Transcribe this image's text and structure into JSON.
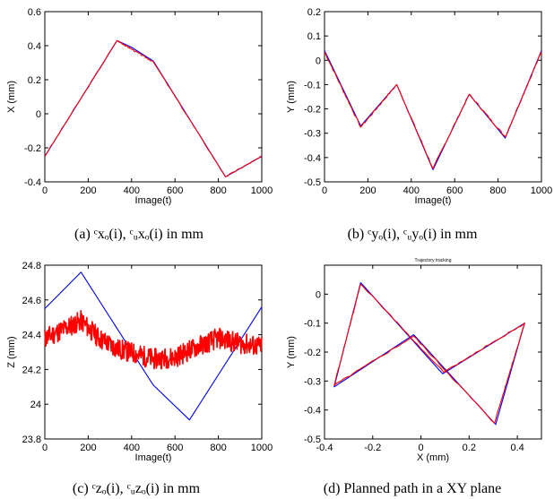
{
  "colors": {
    "commanded": "#0000ff",
    "measured": "#ff0000"
  },
  "captions": [
    "(a) ᶜxₒ(i), ᶜᵤxₒ(i) in mm",
    "(b) ᶜyₒ(i), ᶜᵤyₒ(i) in mm",
    "(c) ᶜzₒ(i), ᶜᵤzₒ(i) in mm",
    "(d) Planned path in a XY plane"
  ],
  "chart_data": [
    {
      "type": "line",
      "xlabel": "Image(t)",
      "ylabel": "X (mm)",
      "xlim": [
        0,
        1000
      ],
      "ylim": [
        -0.4,
        0.6
      ],
      "xticks": [
        0,
        200,
        400,
        600,
        800,
        1000
      ],
      "yticks": [
        -0.4,
        -0.2,
        0,
        0.2,
        0.4,
        0.6
      ],
      "series": [
        {
          "color": "#0000ff",
          "x": [
            0,
            333,
            400,
            500,
            833,
            1000
          ],
          "y": [
            -0.25,
            0.43,
            0.39,
            0.31,
            -0.37,
            -0.25
          ]
        },
        {
          "color": "#ff0000",
          "noise": 0.004,
          "seed": 3,
          "x": [
            0,
            333,
            400,
            500,
            833,
            1000
          ],
          "y": [
            -0.25,
            0.43,
            0.38,
            0.305,
            -0.37,
            -0.25
          ]
        }
      ]
    },
    {
      "type": "line",
      "xlabel": "Image(t)",
      "ylabel": "Y (mm)",
      "xlim": [
        0,
        1000
      ],
      "ylim": [
        -0.5,
        0.2
      ],
      "xticks": [
        0,
        200,
        400,
        600,
        800,
        1000
      ],
      "yticks": [
        -0.5,
        -0.4,
        -0.3,
        -0.2,
        -0.1,
        0,
        0.1,
        0.2
      ],
      "series": [
        {
          "color": "#0000ff",
          "x": [
            0,
            167,
            333,
            500,
            667,
            833,
            1000
          ],
          "y": [
            0.04,
            -0.27,
            -0.1,
            -0.45,
            -0.14,
            -0.32,
            0.04
          ]
        },
        {
          "color": "#ff0000",
          "noise": 0.004,
          "seed": 7,
          "x": [
            0,
            167,
            333,
            500,
            667,
            833,
            1000
          ],
          "y": [
            0.035,
            -0.275,
            -0.1,
            -0.445,
            -0.14,
            -0.315,
            0.035
          ]
        }
      ]
    },
    {
      "type": "line",
      "xlabel": "Image(t)",
      "ylabel": "Z (mm)",
      "xlim": [
        0,
        1000
      ],
      "ylim": [
        23.8,
        24.8
      ],
      "xticks": [
        0,
        200,
        400,
        600,
        800,
        1000
      ],
      "yticks": [
        23.8,
        24,
        24.2,
        24.4,
        24.6,
        24.8
      ],
      "series": [
        {
          "color": "#0000ff",
          "x": [
            0,
            167,
            500,
            667,
            1000
          ],
          "y": [
            24.55,
            24.76,
            24.11,
            23.91,
            24.56
          ]
        },
        {
          "color": "#ff0000",
          "noise": 0.06,
          "seed": 11,
          "dense": 500,
          "x": [
            0,
            100,
            167,
            250,
            333,
            420,
            500,
            600,
            700,
            800,
            900,
            1000
          ],
          "y": [
            24.38,
            24.44,
            24.48,
            24.38,
            24.32,
            24.29,
            24.26,
            24.27,
            24.33,
            24.38,
            24.35,
            24.33
          ]
        }
      ]
    },
    {
      "type": "line",
      "title": "Trajectory tracking",
      "xlabel": "X (mm)",
      "ylabel": "Y (mm)",
      "xlim": [
        -0.4,
        0.5
      ],
      "ylim": [
        -0.5,
        0.1
      ],
      "xticks": [
        -0.4,
        -0.2,
        0,
        0.2,
        0.4
      ],
      "yticks": [
        -0.5,
        -0.4,
        -0.3,
        -0.2,
        -0.1,
        0
      ],
      "series": [
        {
          "color": "#0000ff",
          "x": [
            -0.25,
            -0.36,
            -0.03,
            0.31,
            0.43,
            0.09,
            -0.25
          ],
          "y": [
            0.04,
            -0.32,
            -0.14,
            -0.45,
            -0.1,
            -0.275,
            0.04
          ]
        },
        {
          "color": "#ff0000",
          "noise": 0.003,
          "seed": 5,
          "x": [
            -0.25,
            -0.36,
            -0.03,
            0.305,
            0.43,
            0.095,
            -0.25
          ],
          "y": [
            0.035,
            -0.315,
            -0.145,
            -0.445,
            -0.1,
            -0.27,
            0.035
          ]
        }
      ]
    }
  ]
}
